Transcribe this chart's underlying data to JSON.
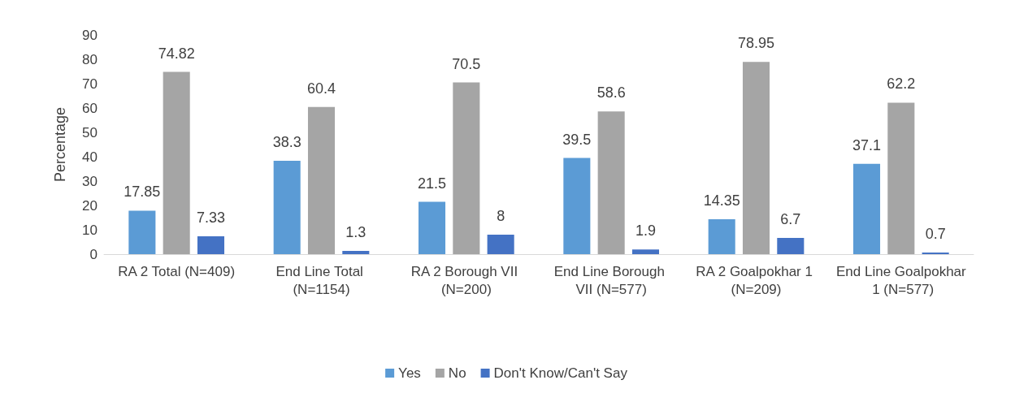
{
  "chart_data": {
    "type": "bar",
    "ylabel": "Percentage",
    "categories": [
      "RA 2 Total (N=409)",
      "End Line Total (N=1154)",
      "RA 2 Borough VII (N=200)",
      "End Line Borough VII (N=577)",
      "RA 2 Goalpokhar 1 (N=209)",
      "End Line Goalpokhar 1 (N=577)"
    ],
    "series": [
      {
        "name": "Yes",
        "color": "#5b9bd5",
        "values": [
          17.85,
          38.3,
          21.5,
          39.5,
          14.35,
          37.1
        ]
      },
      {
        "name": "No",
        "color": "#a5a5a5",
        "values": [
          74.82,
          60.4,
          70.5,
          58.6,
          78.95,
          62.2
        ]
      },
      {
        "name": "Don't Know/Can't Say",
        "color": "#4472c4",
        "values": [
          7.33,
          1.3,
          8,
          1.9,
          6.7,
          0.7
        ]
      }
    ],
    "ylim": [
      0,
      90
    ],
    "yticks": [
      0,
      10,
      20,
      30,
      40,
      50,
      60,
      70,
      80,
      90
    ],
    "grid": false,
    "legend": "bottom",
    "data_labels": true
  }
}
